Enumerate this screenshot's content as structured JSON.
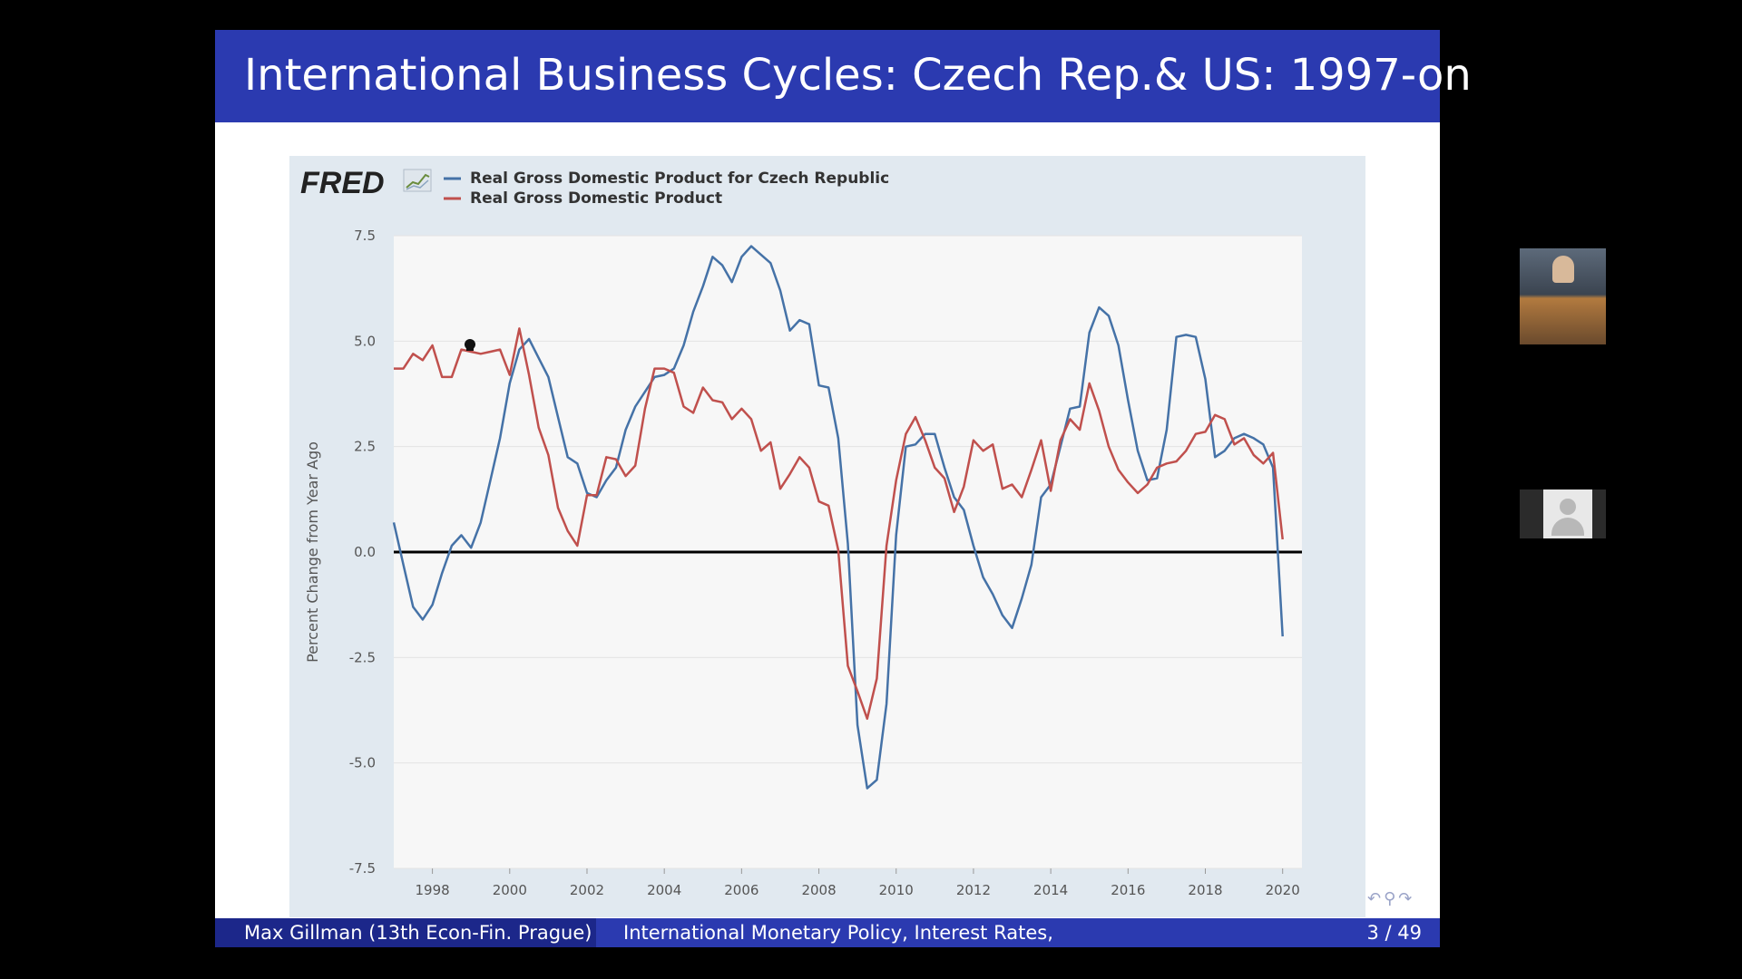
{
  "slide": {
    "title": "International Business Cycles: Czech Rep.& US: 1997-on",
    "footer_author": "Max Gillman  (13th Econ-Fin. Prague)",
    "footer_talk": "International Monetary Policy, Interest Rates,",
    "footer_page": "3 / 49"
  },
  "chart_logo": "FRED",
  "colors": {
    "czech": "#4572a7",
    "us": "#c0504d",
    "header": "#2b3ab0",
    "panel": "#e1e9f0",
    "plot_bg": "#f7f7f7",
    "zero_line": "#000000"
  },
  "chart_data": {
    "type": "line",
    "title": "",
    "xlabel": "",
    "ylabel": "Percent Change from Year Ago",
    "xlim": [
      1997,
      2020.5
    ],
    "ylim": [
      -7.5,
      7.5
    ],
    "yticks": [
      "7.5",
      "5.0",
      "2.5",
      "0.0",
      "-2.5",
      "-5.0",
      "-7.5"
    ],
    "xticks": [
      "1998",
      "2000",
      "2002",
      "2004",
      "2006",
      "2008",
      "2010",
      "2012",
      "2014",
      "2016",
      "2018",
      "2020"
    ],
    "grid": true,
    "legend_position": "top-left",
    "series": [
      {
        "name": "Real Gross Domestic Product for Czech Republic",
        "color": "#4572a7",
        "points": [
          [
            1997.0,
            0.7
          ],
          [
            1997.25,
            -0.3
          ],
          [
            1997.5,
            -1.3
          ],
          [
            1997.75,
            -1.6
          ],
          [
            1998.0,
            -1.25
          ],
          [
            1998.25,
            -0.5
          ],
          [
            1998.5,
            0.15
          ],
          [
            1998.75,
            0.4
          ],
          [
            1999.0,
            0.1
          ],
          [
            1999.25,
            0.7
          ],
          [
            1999.5,
            1.7
          ],
          [
            1999.75,
            2.7
          ],
          [
            2000.0,
            4.0
          ],
          [
            2000.25,
            4.8
          ],
          [
            2000.5,
            5.05
          ],
          [
            2000.75,
            4.6
          ],
          [
            2001.0,
            4.15
          ],
          [
            2001.25,
            3.2
          ],
          [
            2001.5,
            2.25
          ],
          [
            2001.75,
            2.1
          ],
          [
            2002.0,
            1.4
          ],
          [
            2002.25,
            1.3
          ],
          [
            2002.5,
            1.7
          ],
          [
            2002.75,
            2.0
          ],
          [
            2003.0,
            2.9
          ],
          [
            2003.25,
            3.45
          ],
          [
            2003.5,
            3.8
          ],
          [
            2003.75,
            4.15
          ],
          [
            2004.0,
            4.2
          ],
          [
            2004.25,
            4.35
          ],
          [
            2004.5,
            4.9
          ],
          [
            2004.75,
            5.7
          ],
          [
            2005.0,
            6.3
          ],
          [
            2005.25,
            7.0
          ],
          [
            2005.5,
            6.8
          ],
          [
            2005.75,
            6.4
          ],
          [
            2006.0,
            7.0
          ],
          [
            2006.25,
            7.25
          ],
          [
            2006.5,
            7.05
          ],
          [
            2006.75,
            6.85
          ],
          [
            2007.0,
            6.2
          ],
          [
            2007.25,
            5.25
          ],
          [
            2007.5,
            5.5
          ],
          [
            2007.75,
            5.4
          ],
          [
            2008.0,
            3.95
          ],
          [
            2008.25,
            3.9
          ],
          [
            2008.5,
            2.7
          ],
          [
            2008.75,
            0.2
          ],
          [
            2009.0,
            -4.1
          ],
          [
            2009.25,
            -5.6
          ],
          [
            2009.5,
            -5.4
          ],
          [
            2009.75,
            -3.6
          ],
          [
            2010.0,
            0.4
          ],
          [
            2010.25,
            2.5
          ],
          [
            2010.5,
            2.55
          ],
          [
            2010.75,
            2.8
          ],
          [
            2011.0,
            2.8
          ],
          [
            2011.25,
            2.0
          ],
          [
            2011.5,
            1.3
          ],
          [
            2011.75,
            1.0
          ],
          [
            2012.0,
            0.15
          ],
          [
            2012.25,
            -0.6
          ],
          [
            2012.5,
            -1.0
          ],
          [
            2012.75,
            -1.5
          ],
          [
            2013.0,
            -1.8
          ],
          [
            2013.25,
            -1.1
          ],
          [
            2013.5,
            -0.3
          ],
          [
            2013.75,
            1.3
          ],
          [
            2014.0,
            1.6
          ],
          [
            2014.25,
            2.5
          ],
          [
            2014.5,
            3.4
          ],
          [
            2014.75,
            3.45
          ],
          [
            2015.0,
            5.2
          ],
          [
            2015.25,
            5.8
          ],
          [
            2015.5,
            5.6
          ],
          [
            2015.75,
            4.9
          ],
          [
            2016.0,
            3.6
          ],
          [
            2016.25,
            2.4
          ],
          [
            2016.5,
            1.7
          ],
          [
            2016.75,
            1.75
          ],
          [
            2017.0,
            2.9
          ],
          [
            2017.25,
            5.1
          ],
          [
            2017.5,
            5.15
          ],
          [
            2017.75,
            5.1
          ],
          [
            2018.0,
            4.1
          ],
          [
            2018.25,
            2.25
          ],
          [
            2018.5,
            2.4
          ],
          [
            2018.75,
            2.7
          ],
          [
            2019.0,
            2.8
          ],
          [
            2019.25,
            2.7
          ],
          [
            2019.5,
            2.55
          ],
          [
            2019.75,
            2.0
          ],
          [
            2020.0,
            -2.0
          ]
        ]
      },
      {
        "name": "Real Gross Domestic Product",
        "color": "#c0504d",
        "points": [
          [
            1997.0,
            4.35
          ],
          [
            1997.25,
            4.35
          ],
          [
            1997.5,
            4.7
          ],
          [
            1997.75,
            4.55
          ],
          [
            1998.0,
            4.9
          ],
          [
            1998.25,
            4.15
          ],
          [
            1998.5,
            4.15
          ],
          [
            1998.75,
            4.8
          ],
          [
            1999.0,
            4.75
          ],
          [
            1999.25,
            4.7
          ],
          [
            1999.5,
            4.75
          ],
          [
            1999.75,
            4.8
          ],
          [
            2000.0,
            4.2
          ],
          [
            2000.25,
            5.3
          ],
          [
            2000.5,
            4.2
          ],
          [
            2000.75,
            2.95
          ],
          [
            2001.0,
            2.3
          ],
          [
            2001.25,
            1.05
          ],
          [
            2001.5,
            0.5
          ],
          [
            2001.75,
            0.15
          ],
          [
            2002.0,
            1.35
          ],
          [
            2002.25,
            1.35
          ],
          [
            2002.5,
            2.25
          ],
          [
            2002.75,
            2.2
          ],
          [
            2003.0,
            1.8
          ],
          [
            2003.25,
            2.05
          ],
          [
            2003.5,
            3.4
          ],
          [
            2003.75,
            4.35
          ],
          [
            2004.0,
            4.35
          ],
          [
            2004.25,
            4.25
          ],
          [
            2004.5,
            3.45
          ],
          [
            2004.75,
            3.3
          ],
          [
            2005.0,
            3.9
          ],
          [
            2005.25,
            3.6
          ],
          [
            2005.5,
            3.55
          ],
          [
            2005.75,
            3.15
          ],
          [
            2006.0,
            3.4
          ],
          [
            2006.25,
            3.15
          ],
          [
            2006.5,
            2.4
          ],
          [
            2006.75,
            2.6
          ],
          [
            2007.0,
            1.5
          ],
          [
            2007.25,
            1.85
          ],
          [
            2007.5,
            2.25
          ],
          [
            2007.75,
            2.0
          ],
          [
            2008.0,
            1.2
          ],
          [
            2008.25,
            1.1
          ],
          [
            2008.5,
            0.05
          ],
          [
            2008.75,
            -2.7
          ],
          [
            2009.0,
            -3.3
          ],
          [
            2009.25,
            -3.95
          ],
          [
            2009.5,
            -3.0
          ],
          [
            2009.75,
            0.15
          ],
          [
            2010.0,
            1.7
          ],
          [
            2010.25,
            2.8
          ],
          [
            2010.5,
            3.2
          ],
          [
            2010.75,
            2.65
          ],
          [
            2011.0,
            2.0
          ],
          [
            2011.25,
            1.75
          ],
          [
            2011.5,
            0.95
          ],
          [
            2011.75,
            1.55
          ],
          [
            2012.0,
            2.65
          ],
          [
            2012.25,
            2.4
          ],
          [
            2012.5,
            2.55
          ],
          [
            2012.75,
            1.5
          ],
          [
            2013.0,
            1.6
          ],
          [
            2013.25,
            1.3
          ],
          [
            2013.5,
            1.95
          ],
          [
            2013.75,
            2.65
          ],
          [
            2014.0,
            1.45
          ],
          [
            2014.25,
            2.65
          ],
          [
            2014.5,
            3.15
          ],
          [
            2014.75,
            2.9
          ],
          [
            2015.0,
            4.0
          ],
          [
            2015.25,
            3.35
          ],
          [
            2015.5,
            2.5
          ],
          [
            2015.75,
            1.95
          ],
          [
            2016.0,
            1.65
          ],
          [
            2016.25,
            1.4
          ],
          [
            2016.5,
            1.6
          ],
          [
            2016.75,
            2.0
          ],
          [
            2017.0,
            2.1
          ],
          [
            2017.25,
            2.15
          ],
          [
            2017.5,
            2.4
          ],
          [
            2017.75,
            2.8
          ],
          [
            2018.0,
            2.85
          ],
          [
            2018.25,
            3.25
          ],
          [
            2018.5,
            3.15
          ],
          [
            2018.75,
            2.55
          ],
          [
            2019.0,
            2.7
          ],
          [
            2019.25,
            2.3
          ],
          [
            2019.5,
            2.1
          ],
          [
            2019.75,
            2.35
          ],
          [
            2020.0,
            0.3
          ]
        ]
      }
    ]
  }
}
